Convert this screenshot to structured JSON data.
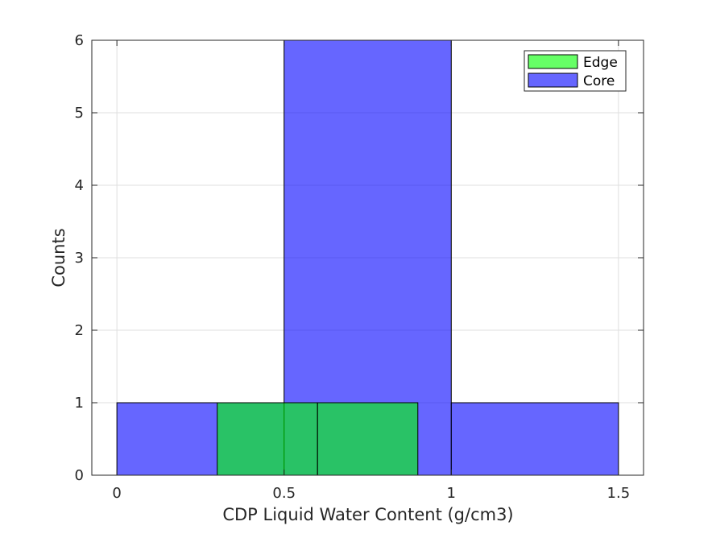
{
  "chart_data": {
    "type": "bar",
    "subtype": "overlaid-histogram",
    "xlabel": "CDP Liquid Water Content (g/cm3)",
    "ylabel": "Counts",
    "xlim": [
      -0.075,
      1.575
    ],
    "ylim": [
      0,
      6
    ],
    "x_ticks": [
      0,
      0.5,
      1,
      1.5
    ],
    "x_tick_labels": [
      "0",
      "0.5",
      "1",
      "1.5"
    ],
    "y_ticks": [
      0,
      1,
      2,
      3,
      4,
      5,
      6
    ],
    "y_tick_labels": [
      "0",
      "1",
      "2",
      "3",
      "4",
      "5",
      "6"
    ],
    "grid": true,
    "legend_position": "top-right",
    "series": [
      {
        "name": "Edge",
        "color": "#00ff00",
        "bins": [
          {
            "x_start": 0.3,
            "x_end": 0.6,
            "count": 1
          },
          {
            "x_start": 0.6,
            "x_end": 0.9,
            "count": 1
          }
        ]
      },
      {
        "name": "Core",
        "color": "#0000ff",
        "bins": [
          {
            "x_start": 0.0,
            "x_end": 0.5,
            "count": 1
          },
          {
            "x_start": 0.5,
            "x_end": 1.0,
            "count": 6
          },
          {
            "x_start": 1.0,
            "x_end": 1.5,
            "count": 1
          }
        ]
      }
    ]
  }
}
